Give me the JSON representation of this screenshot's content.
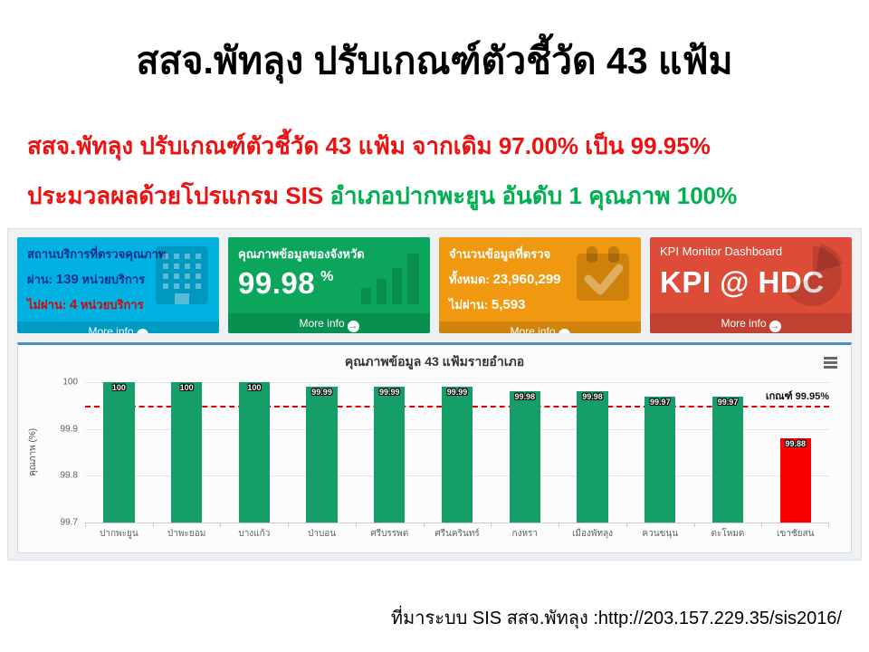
{
  "slide": {
    "title": "สสจ.พัทลุง ปรับเกณฑ์ตัวชี้วัด 43 แฟ้ม",
    "subtitle1": "สสจ.พัทลุง ปรับเกณฑ์ตัวชี้วัด 43 แฟ้ม จากเดิม 97.00% เป็น 99.95%",
    "subtitle2_red": "ประมวลผลด้วยโปรแกรม SIS",
    "subtitle2_green": " อำเภอปากพะยูน อันดับ 1 คุณภาพ 100%",
    "source": "ที่มาระบบ SIS สสจ.พัทลุง :http://203.157.229.35/sis2016/"
  },
  "cards": {
    "services": {
      "title": "สถานบริการที่ตรวจคุณภาพ",
      "pass_label": "ผ่าน:",
      "pass_value": "139",
      "pass_unit": " หน่วยบริการ",
      "fail_label": "ไม่ผ่าน:",
      "fail_value": "4",
      "fail_unit": " หน่วยบริการ",
      "more_info": "More info",
      "color": "#00b1e1",
      "icon": "building-icon"
    },
    "quality": {
      "title": "คุณภาพข้อมูลของจังหวัด",
      "value": "99.98",
      "unit": "%",
      "more_info": "More info",
      "color": "#0ba65c",
      "icon": "bar-chart-icon"
    },
    "records": {
      "title": "จำนวนข้อมูลที่ตรวจ",
      "total_label": "ทั้งหมด:",
      "total_value": "23,960,299",
      "fail_label": "ไม่ผ่าน:",
      "fail_value": "5,593",
      "more_info": "More info",
      "color": "#f0980f",
      "icon": "calendar-check-icon"
    },
    "kpi": {
      "title": "KPI Monitor Dashboard",
      "value": "KPI @ HDC",
      "more_info": "More info",
      "color": "#dd4b39",
      "icon": "pie-chart-icon"
    }
  },
  "chart_data": {
    "type": "bar",
    "title": "คุณภาพข้อมูล 43 แฟ้มรายอำเภอ",
    "categories": [
      "ปากพะยูน",
      "ป่าพะยอม",
      "บางแก้ว",
      "ป่าบอน",
      "ศรีบรรพต",
      "ศรีนครินทร์",
      "กงหรา",
      "เมืองพัทลุง",
      "ควนขนุน",
      "ตะโหมด",
      "เขาชัยสน"
    ],
    "values": [
      100,
      100,
      100,
      99.99,
      99.99,
      99.99,
      99.98,
      99.98,
      99.97,
      99.97,
      99.88
    ],
    "ylabel": "คุณภาพ (%)",
    "xlabel": "",
    "ylim": [
      99.7,
      100
    ],
    "yticks": [
      100,
      99.9,
      99.8,
      99.7
    ],
    "grid": true,
    "threshold": 99.95,
    "threshold_label": "เกณฑ์ 99.95%",
    "bar_color": "#159e67",
    "highlight_index": 10,
    "highlight_color": "#f80000"
  }
}
